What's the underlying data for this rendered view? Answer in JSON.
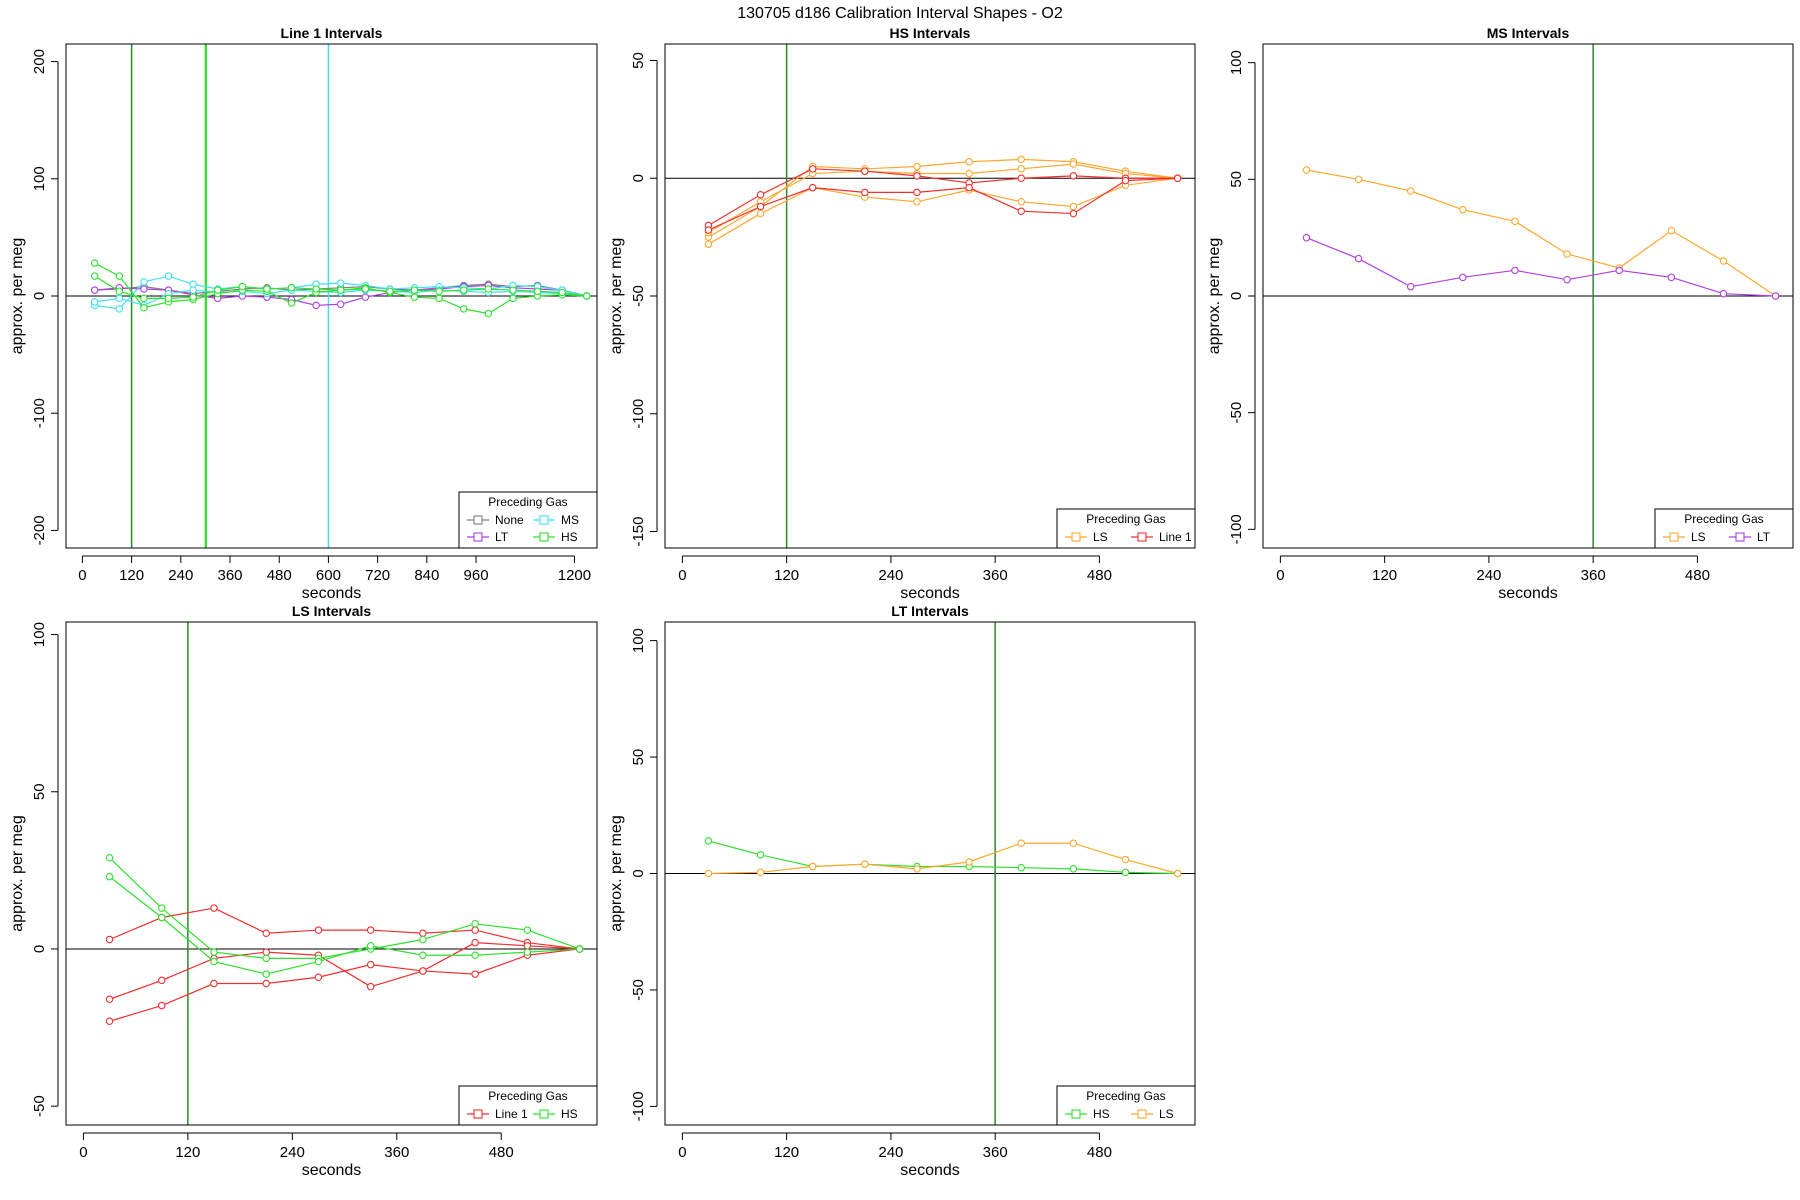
{
  "figure": {
    "title": "130705   d186   Calibration Interval Shapes - O2"
  },
  "colors": {
    "None": "#808080",
    "LT": "#b040e0",
    "MS": "#40e0f0",
    "HS": "#30e030",
    "LS": "#ffa830",
    "Line 1": "#f03030",
    "zero_line": "#000000",
    "marker_line": "#008000"
  },
  "chart_data": [
    {
      "type": "line",
      "title": "Line 1 Intervals",
      "xlabel": "seconds",
      "ylabel": "approx. per meg",
      "xlim": [
        -40,
        1255
      ],
      "ylim": [
        -215,
        215
      ],
      "xticks": [
        0,
        120,
        240,
        360,
        480,
        600,
        720,
        840,
        960,
        1200
      ],
      "yticks": [
        -200,
        -100,
        0,
        100,
        200
      ],
      "vlines": [
        {
          "x": 120,
          "color": "#2e8b2e"
        },
        {
          "x": 300,
          "color": "#30e030"
        },
        {
          "x": 302,
          "color": "#30e030"
        },
        {
          "x": 600,
          "color": "#40e0f0"
        }
      ],
      "legend": {
        "title": "Preceding Gas",
        "position": "bottom-right",
        "columns": 2,
        "entries": [
          "None",
          "MS",
          "LT",
          "HS"
        ]
      },
      "series": [
        {
          "name": "None",
          "color": "#808080",
          "x": [
            30,
            90,
            150,
            210,
            270,
            330,
            390,
            450,
            510,
            570,
            630,
            690,
            750,
            810,
            870,
            930,
            990,
            1050,
            1110,
            1170,
            1230
          ],
          "y": [
            5,
            6,
            8,
            5,
            2,
            4,
            6,
            7,
            5,
            6,
            7,
            8,
            6,
            5,
            7,
            9,
            10,
            8,
            9,
            5,
            0
          ]
        },
        {
          "name": "LT",
          "color": "#b040e0",
          "x": [
            30,
            90,
            150,
            210,
            270,
            330,
            390,
            450,
            510,
            570,
            630,
            690,
            750,
            810,
            870,
            930,
            990,
            1050,
            1110,
            1170,
            1230
          ],
          "y": [
            5,
            7,
            6,
            5,
            1,
            -2,
            0,
            -1,
            -3,
            -8,
            -7,
            -1,
            3,
            5,
            6,
            8,
            9,
            7,
            6,
            5,
            0
          ]
        },
        {
          "name": "MS",
          "color": "#40e0f0",
          "x": [
            30,
            90,
            150,
            210,
            270,
            330,
            390,
            450,
            510,
            570,
            630,
            690,
            750,
            810,
            870,
            930,
            990,
            1050,
            1110,
            1170,
            1230
          ],
          "y": [
            -8,
            -11,
            12,
            17,
            10,
            6,
            8,
            6,
            7,
            10,
            11,
            9,
            6,
            7,
            8,
            7,
            6,
            9,
            8,
            5,
            0
          ]
        },
        {
          "name": "MS",
          "color": "#40e0f0",
          "x": [
            30,
            90,
            150,
            210,
            270,
            330,
            390,
            450,
            510,
            570,
            630,
            690,
            750,
            810,
            870,
            930,
            990,
            1050,
            1110,
            1170,
            1230
          ],
          "y": [
            -5,
            -2,
            -8,
            2,
            5,
            3,
            4,
            2,
            5,
            4,
            3,
            5,
            4,
            3,
            5,
            4,
            3,
            4,
            3,
            2,
            0
          ]
        },
        {
          "name": "HS",
          "color": "#30e030",
          "x": [
            30,
            90,
            150,
            210,
            270,
            330,
            390,
            450,
            510,
            570,
            630,
            690,
            750,
            810,
            870,
            930,
            990,
            1050,
            1110,
            1170,
            1230
          ],
          "y": [
            28,
            17,
            -10,
            -5,
            -3,
            2,
            5,
            4,
            -6,
            3,
            5,
            7,
            3,
            -1,
            -2,
            -11,
            -15,
            -2,
            0,
            1,
            0
          ]
        },
        {
          "name": "HS",
          "color": "#30e030",
          "x": [
            30,
            90,
            150,
            210,
            270,
            330,
            390,
            450,
            510,
            570,
            630,
            690,
            750,
            810,
            870,
            930,
            990,
            1050,
            1110,
            1170,
            1230
          ],
          "y": [
            17,
            4,
            -2,
            -2,
            -1,
            5,
            8,
            6,
            7,
            6,
            5,
            6,
            4,
            5,
            4,
            5,
            6,
            5,
            4,
            3,
            0
          ]
        }
      ]
    },
    {
      "type": "line",
      "title": "HS Intervals",
      "xlabel": "seconds",
      "ylabel": "approx. per meg",
      "xlim": [
        -20,
        590
      ],
      "ylim": [
        -157,
        57
      ],
      "xticks": [
        0,
        120,
        240,
        360,
        480
      ],
      "yticks": [
        -150,
        -100,
        -50,
        0,
        50
      ],
      "vlines": [
        {
          "x": 120,
          "color": "#2e8b2e"
        }
      ],
      "legend": {
        "title": "Preceding Gas",
        "position": "bottom-right",
        "columns": 2,
        "entries": [
          "LS",
          "Line 1"
        ]
      },
      "series": [
        {
          "name": "LS",
          "color": "#ffa830",
          "x": [
            30,
            90,
            150,
            210,
            270,
            330,
            390,
            450,
            510,
            570
          ],
          "y": [
            -28,
            -15,
            -4,
            -8,
            -10,
            -5,
            -10,
            -12,
            -3,
            0
          ]
        },
        {
          "name": "LS",
          "color": "#ffa830",
          "x": [
            30,
            90,
            150,
            210,
            270,
            330,
            390,
            450,
            510,
            570
          ],
          "y": [
            -25,
            -12,
            5,
            4,
            5,
            7,
            8,
            7,
            3,
            0
          ]
        },
        {
          "name": "LS",
          "color": "#ffa830",
          "x": [
            30,
            90,
            150,
            210,
            270,
            330,
            390,
            450,
            510,
            570
          ],
          "y": [
            -23,
            -10,
            2,
            3,
            2,
            2,
            4,
            6,
            2,
            0
          ]
        },
        {
          "name": "Line 1",
          "color": "#f03030",
          "x": [
            30,
            90,
            150,
            210,
            270,
            330,
            390,
            450,
            510,
            570
          ],
          "y": [
            -20,
            -7,
            4,
            3,
            1,
            -2,
            0,
            1,
            0,
            0
          ]
        },
        {
          "name": "Line 1",
          "color": "#f03030",
          "x": [
            30,
            90,
            150,
            210,
            270,
            330,
            390,
            450,
            510,
            570
          ],
          "y": [
            -22,
            -12,
            -4,
            -6,
            -6,
            -4,
            -14,
            -15,
            -1,
            0
          ]
        }
      ]
    },
    {
      "type": "line",
      "title": "MS Intervals",
      "xlabel": "seconds",
      "ylabel": "approx. per meg",
      "xlim": [
        -20,
        590
      ],
      "ylim": [
        -108,
        108
      ],
      "xticks": [
        0,
        120,
        240,
        360,
        480
      ],
      "yticks": [
        -100,
        -50,
        0,
        50,
        100
      ],
      "vlines": [
        {
          "x": 360,
          "color": "#2e8b2e"
        }
      ],
      "legend": {
        "title": "Preceding Gas",
        "position": "bottom-right",
        "columns": 2,
        "entries": [
          "LS",
          "LT"
        ]
      },
      "series": [
        {
          "name": "LS",
          "color": "#ffa830",
          "x": [
            30,
            90,
            150,
            210,
            270,
            330,
            390,
            450,
            510,
            570
          ],
          "y": [
            54,
            50,
            45,
            37,
            32,
            18,
            12,
            28,
            15,
            0
          ]
        },
        {
          "name": "LT",
          "color": "#b040e0",
          "x": [
            30,
            90,
            150,
            210,
            270,
            330,
            390,
            450,
            510,
            570
          ],
          "y": [
            25,
            16,
            4,
            8,
            11,
            7,
            11,
            8,
            1,
            0
          ]
        }
      ]
    },
    {
      "type": "line",
      "title": "LS Intervals",
      "xlabel": "seconds",
      "ylabel": "approx. per meg",
      "xlim": [
        -20,
        590
      ],
      "ylim": [
        -56,
        104
      ],
      "xticks": [
        0,
        120,
        240,
        360,
        480
      ],
      "yticks": [
        -50,
        0,
        50,
        100
      ],
      "vlines": [
        {
          "x": 120,
          "color": "#2e8b2e"
        }
      ],
      "legend": {
        "title": "Preceding Gas",
        "position": "bottom-right",
        "columns": 2,
        "entries": [
          "Line 1",
          "HS"
        ]
      },
      "series": [
        {
          "name": "Line 1",
          "color": "#f03030",
          "x": [
            30,
            90,
            150,
            210,
            270,
            330,
            390,
            450,
            510,
            570
          ],
          "y": [
            3,
            10,
            13,
            5,
            6,
            6,
            5,
            6,
            2,
            0
          ]
        },
        {
          "name": "Line 1",
          "color": "#f03030",
          "x": [
            30,
            90,
            150,
            210,
            270,
            330,
            390,
            450,
            510,
            570
          ],
          "y": [
            -16,
            -10,
            -3,
            -1,
            -2,
            -12,
            -7,
            2,
            1,
            0
          ]
        },
        {
          "name": "Line 1",
          "color": "#f03030",
          "x": [
            30,
            90,
            150,
            210,
            270,
            330,
            390,
            450,
            510,
            570
          ],
          "y": [
            -23,
            -18,
            -11,
            -11,
            -9,
            -5,
            -7,
            -8,
            -2,
            0
          ]
        },
        {
          "name": "HS",
          "color": "#30e030",
          "x": [
            30,
            90,
            150,
            210,
            270,
            330,
            390,
            450,
            510,
            570
          ],
          "y": [
            29,
            13,
            -1,
            -3,
            -3,
            0,
            3,
            8,
            6,
            0
          ]
        },
        {
          "name": "HS",
          "color": "#30e030",
          "x": [
            30,
            90,
            150,
            210,
            270,
            330,
            390,
            450,
            510,
            570
          ],
          "y": [
            23,
            10,
            -4,
            -8,
            -4,
            1,
            -2,
            -2,
            -1,
            0
          ]
        }
      ]
    },
    {
      "type": "line",
      "title": "LT Intervals",
      "xlabel": "seconds",
      "ylabel": "approx. per meg",
      "xlim": [
        -20,
        590
      ],
      "ylim": [
        -108,
        108
      ],
      "xticks": [
        0,
        120,
        240,
        360,
        480
      ],
      "yticks": [
        -100,
        -50,
        0,
        50,
        100
      ],
      "vlines": [
        {
          "x": 360,
          "color": "#2e8b2e"
        }
      ],
      "legend": {
        "title": "Preceding Gas",
        "position": "bottom-right",
        "columns": 2,
        "entries": [
          "HS",
          "LS"
        ]
      },
      "series": [
        {
          "name": "HS",
          "color": "#30e030",
          "x": [
            30,
            90,
            150,
            210,
            270,
            330,
            390,
            450,
            510,
            570
          ],
          "y": [
            14,
            8,
            3,
            4,
            3,
            3,
            2.5,
            2,
            0.5,
            0
          ]
        },
        {
          "name": "LS",
          "color": "#ffa830",
          "x": [
            30,
            90,
            150,
            210,
            270,
            330,
            390,
            450,
            510,
            570
          ],
          "y": [
            0,
            0.5,
            3,
            4,
            2,
            5,
            13,
            13,
            6,
            0
          ]
        }
      ]
    }
  ]
}
